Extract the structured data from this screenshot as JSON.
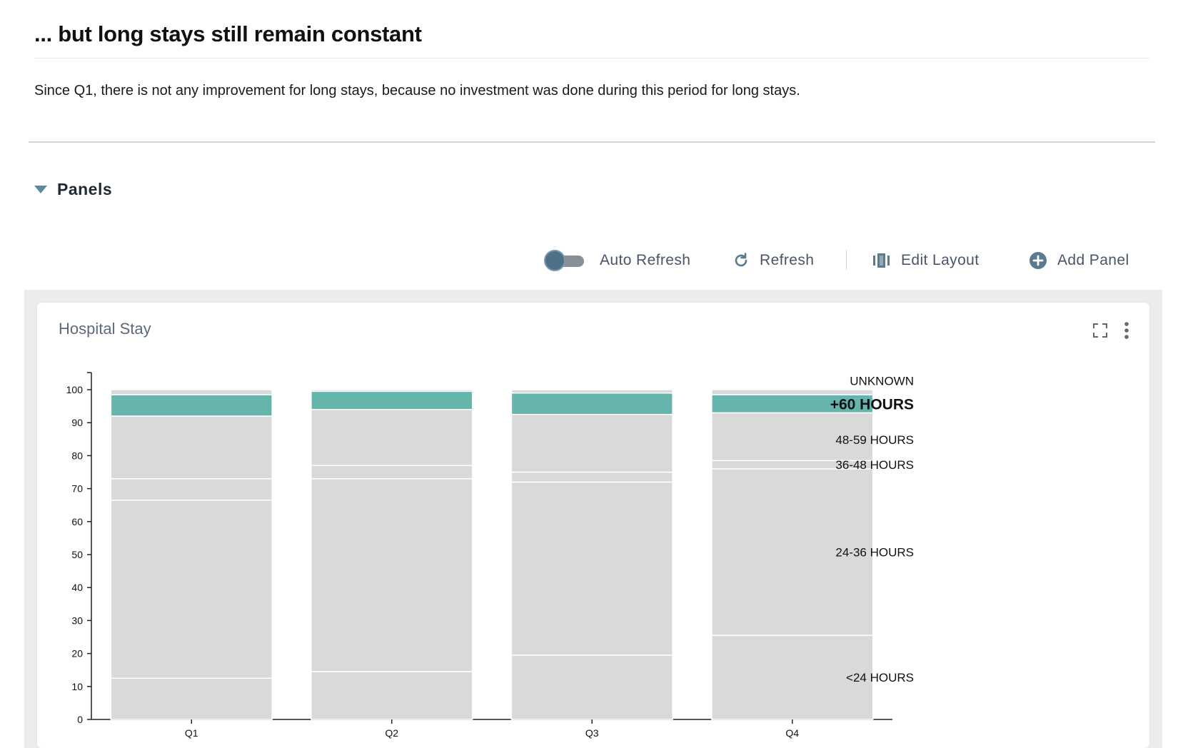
{
  "story": {
    "title": "... but long stays still remain constant",
    "description": "Since Q1, there is not any improvement for long stays, because no investment was done during this period for long stays."
  },
  "panels_section": {
    "label": "Panels"
  },
  "toolbar": {
    "auto_refresh_label": "Auto Refresh",
    "auto_refresh_on": false,
    "refresh_label": "Refresh",
    "edit_layout_label": "Edit Layout",
    "add_panel_label": "Add Panel"
  },
  "panel": {
    "title": "Hospital Stay",
    "icons": [
      "expand-icon",
      "more-vertical-icon"
    ]
  },
  "colors": {
    "accent": "#5b8a98",
    "highlight_series": "#66b5ad",
    "base_series": "#d9d9d9"
  },
  "chart_data": {
    "type": "bar",
    "stacked": true,
    "categories": [
      "Q1",
      "Q2",
      "Q3",
      "Q4"
    ],
    "series": [
      {
        "name": "<24 HOURS",
        "values": [
          12.5,
          14.5,
          19.5,
          25.5
        ]
      },
      {
        "name": "24-36 HOURS",
        "values": [
          54,
          58.5,
          52.5,
          50.5
        ]
      },
      {
        "name": "36-48 HOURS",
        "values": [
          6.5,
          4.0,
          3.0,
          2.5
        ]
      },
      {
        "name": "48-59 HOURS",
        "values": [
          19,
          17,
          17.5,
          14.5
        ]
      },
      {
        "name": "+60 HOURS",
        "values": [
          6.5,
          5.5,
          6.5,
          5.5
        ]
      },
      {
        "name": "UNKNOWN",
        "values": [
          1.5,
          0.5,
          1.0,
          1.5
        ]
      }
    ],
    "highlighted_series": "+60 HOURS",
    "ylim": [
      0,
      100
    ],
    "yticks": [
      0,
      10,
      20,
      30,
      40,
      50,
      60,
      70,
      80,
      90,
      100
    ],
    "xlabel": "",
    "ylabel": "",
    "legend": "right",
    "grid": false
  }
}
